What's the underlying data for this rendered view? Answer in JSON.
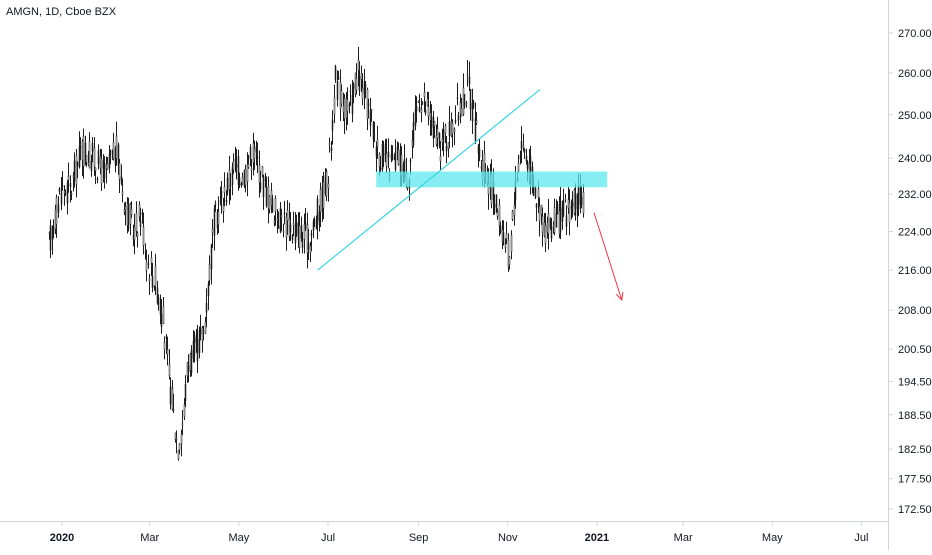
{
  "header": {
    "title": "AMGN, 1D, Cboe BZX"
  },
  "colors": {
    "candle": "#1f1f1f",
    "trendline": "#36d6e0",
    "zone": "#5ee8ee",
    "arrow": "#f23645",
    "axis_line": "#d1d4dc",
    "background": "#ffffff"
  },
  "chart_data": {
    "type": "candlestick",
    "title": "AMGN, 1D, Cboe BZX",
    "grid": false,
    "y_axis": {
      "position": "right",
      "scale": "log",
      "tick_labels": [
        "270.00",
        "260.00",
        "250.00",
        "240.00",
        "232.00",
        "224.00",
        "216.00",
        "208.00",
        "200.50",
        "194.50",
        "188.50",
        "182.50",
        "177.50",
        "172.50"
      ]
    },
    "x_axis": {
      "tick_labels": [
        "2020",
        "Mar",
        "May",
        "Jul",
        "Sep",
        "Nov",
        "2021",
        "Mar",
        "May",
        "Jul"
      ]
    },
    "price_path": [
      [
        "2019-12-23",
        221
      ],
      [
        "2019-12-31",
        233
      ],
      [
        "2020-01-07",
        233
      ],
      [
        "2020-01-14",
        242
      ],
      [
        "2020-01-22",
        240
      ],
      [
        "2020-01-31",
        236
      ],
      [
        "2020-02-07",
        242
      ],
      [
        "2020-02-13",
        230
      ],
      [
        "2020-02-19",
        224
      ],
      [
        "2020-02-24",
        228
      ],
      [
        "2020-02-28",
        218
      ],
      [
        "2020-03-05",
        214
      ],
      [
        "2020-03-10",
        206
      ],
      [
        "2020-03-13",
        198
      ],
      [
        "2020-03-17",
        189
      ],
      [
        "2020-03-20",
        183
      ],
      [
        "2020-03-24",
        188
      ],
      [
        "2020-03-27",
        198
      ],
      [
        "2020-04-01",
        200
      ],
      [
        "2020-04-07",
        204
      ],
      [
        "2020-04-14",
        226
      ],
      [
        "2020-04-21",
        232
      ],
      [
        "2020-04-28",
        238
      ],
      [
        "2020-05-04",
        236
      ],
      [
        "2020-05-11",
        242
      ],
      [
        "2020-05-18",
        234
      ],
      [
        "2020-05-26",
        228
      ],
      [
        "2020-06-02",
        226
      ],
      [
        "2020-06-10",
        224
      ],
      [
        "2020-06-18",
        222
      ],
      [
        "2020-06-24",
        228
      ],
      [
        "2020-07-01",
        236
      ],
      [
        "2020-07-06",
        258
      ],
      [
        "2020-07-10",
        254
      ],
      [
        "2020-07-15",
        250
      ],
      [
        "2020-07-21",
        260
      ],
      [
        "2020-07-28",
        252
      ],
      [
        "2020-08-04",
        242
      ],
      [
        "2020-08-11",
        238
      ],
      [
        "2020-08-18",
        240
      ],
      [
        "2020-08-25",
        236
      ],
      [
        "2020-09-01",
        255
      ],
      [
        "2020-09-08",
        250
      ],
      [
        "2020-09-15",
        242
      ],
      [
        "2020-09-22",
        246
      ],
      [
        "2020-09-29",
        252
      ],
      [
        "2020-10-05",
        257
      ],
      [
        "2020-10-13",
        240
      ],
      [
        "2020-10-20",
        234
      ],
      [
        "2020-10-27",
        226
      ],
      [
        "2020-11-02",
        218
      ],
      [
        "2020-11-05",
        230
      ],
      [
        "2020-11-10",
        244
      ],
      [
        "2020-11-16",
        238
      ],
      [
        "2020-11-20",
        232
      ],
      [
        "2020-11-27",
        224
      ],
      [
        "2020-12-03",
        226
      ],
      [
        "2020-12-10",
        228
      ],
      [
        "2020-12-17",
        230
      ],
      [
        "2020-12-23",
        231
      ]
    ],
    "drawings": {
      "trendline": {
        "from": [
          "2020-06-24",
          216
        ],
        "to": [
          "2020-11-23",
          256
        ]
      },
      "resistance_zone": {
        "from": "2020-08-03",
        "to": "2021-01-08",
        "y_low": 233.5,
        "y_high": 237
      },
      "projection_arrow": {
        "from": [
          "2020-12-30",
          228
        ],
        "to": [
          "2021-01-18",
          210
        ]
      }
    }
  }
}
